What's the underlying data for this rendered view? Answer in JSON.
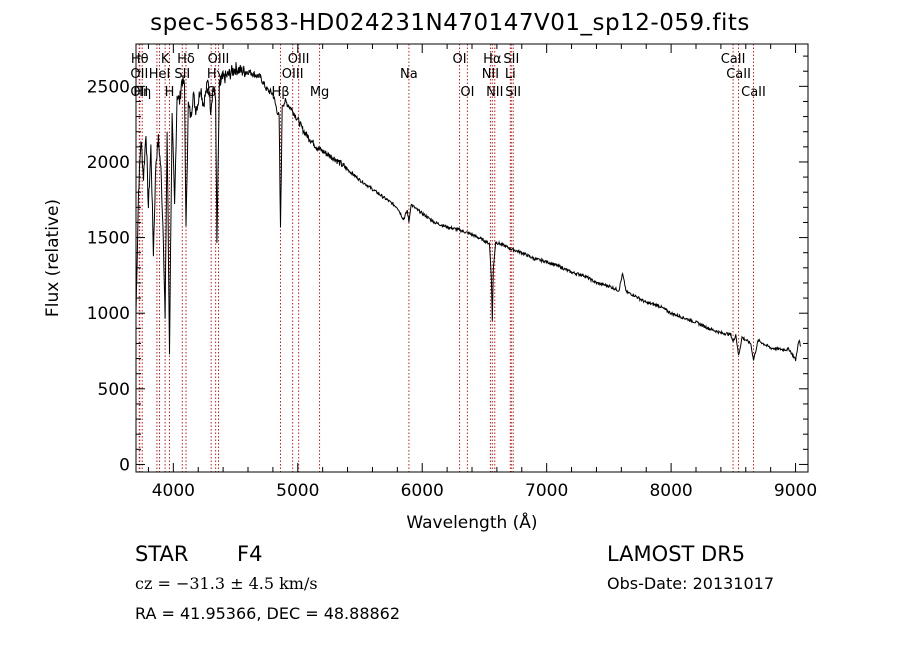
{
  "title": "spec-56583-HD024231N470147V01_sp12-059.fits",
  "info": {
    "class": "STAR",
    "subclass": "F4",
    "survey": "LAMOST DR5",
    "cz_label": "cz = −31.3 ± 4.5 km/s",
    "obs_date": "Obs-Date: 20131017",
    "coords": "RA =  41.95366, DEC =  48.88862"
  },
  "chart_data": {
    "type": "line",
    "title": "spec-56583-HD024231N470147V01_sp12-059.fits",
    "xlabel": "Wavelength (Å)",
    "ylabel": "Flux (relative)",
    "xlim": [
      3700,
      9100
    ],
    "ylim": [
      -50,
      2780
    ],
    "xticks": [
      4000,
      5000,
      6000,
      7000,
      8000,
      9000
    ],
    "yticks": [
      0,
      500,
      1000,
      1500,
      2000,
      2500
    ],
    "series": [
      {
        "color": "#000000",
        "x": [
          3700,
          3720,
          3740,
          3760,
          3780,
          3800,
          3820,
          3840,
          3860,
          3880,
          3900,
          3920,
          3934,
          3950,
          3969,
          3990,
          4010,
          4030,
          4050,
          4070,
          4090,
          4102,
          4120,
          4140,
          4160,
          4180,
          4200,
          4220,
          4240,
          4260,
          4280,
          4300,
          4320,
          4340,
          4350,
          4370,
          4400,
          4450,
          4500,
          4550,
          4600,
          4650,
          4700,
          4750,
          4800,
          4830,
          4850,
          4861,
          4875,
          4900,
          4950,
          5000,
          5050,
          5100,
          5150,
          5200,
          5300,
          5400,
          5500,
          5600,
          5700,
          5800,
          5850,
          5880,
          5893,
          5910,
          5950,
          6000,
          6100,
          6200,
          6300,
          6400,
          6500,
          6540,
          6555,
          6563,
          6572,
          6590,
          6650,
          6700,
          6800,
          6900,
          7000,
          7100,
          7200,
          7300,
          7400,
          7500,
          7580,
          7610,
          7640,
          7700,
          7800,
          7900,
          8000,
          8100,
          8200,
          8300,
          8400,
          8480,
          8498,
          8520,
          8542,
          8570,
          8640,
          8662,
          8700,
          8800,
          8900,
          8950,
          8980,
          9000,
          9020,
          9030,
          9040
        ],
        "y": [
          1000,
          1800,
          2150,
          1900,
          2200,
          1700,
          2100,
          1400,
          2000,
          2150,
          1950,
          1500,
          950,
          2200,
          750,
          2300,
          1700,
          2450,
          2400,
          2550,
          2500,
          1550,
          2380,
          2300,
          2450,
          2350,
          2400,
          2500,
          2380,
          2450,
          2550,
          2350,
          2500,
          2420,
          1450,
          2500,
          2550,
          2580,
          2620,
          2600,
          2600,
          2580,
          2560,
          2480,
          2450,
          2350,
          2300,
          1550,
          2380,
          2400,
          2350,
          2280,
          2200,
          2150,
          2100,
          2070,
          2020,
          1950,
          1880,
          1820,
          1760,
          1700,
          1620,
          1680,
          1600,
          1720,
          1690,
          1660,
          1600,
          1570,
          1550,
          1520,
          1480,
          1460,
          1250,
          950,
          1300,
          1470,
          1450,
          1430,
          1400,
          1360,
          1340,
          1310,
          1270,
          1250,
          1200,
          1180,
          1150,
          1260,
          1140,
          1120,
          1070,
          1050,
          1000,
          970,
          940,
          900,
          870,
          860,
          810,
          860,
          720,
          840,
          800,
          690,
          820,
          770,
          760,
          760,
          720,
          690,
          790,
          820,
          780
        ]
      }
    ],
    "lines": [
      {
        "w": 3730,
        "label": "Hθ",
        "row": 1
      },
      {
        "w": 3750,
        "label": "Hη",
        "row": 3
      },
      {
        "w": 3727,
        "label": "OII",
        "row": 2
      },
      {
        "w": 3727,
        "label": "OII",
        "row": 3
      },
      {
        "w": 3868,
        "label": "",
        "row": 0
      },
      {
        "w": 3889,
        "label": "HeI",
        "row": 2
      },
      {
        "w": 3934,
        "label": "K",
        "row": 1
      },
      {
        "w": 3969,
        "label": "H",
        "row": 3
      },
      {
        "w": 4072,
        "label": "SII",
        "row": 2
      },
      {
        "w": 4102,
        "label": "Hδ",
        "row": 1
      },
      {
        "w": 4304,
        "label": "G",
        "row": 3
      },
      {
        "w": 4340,
        "label": "Hγ",
        "row": 2
      },
      {
        "w": 4363,
        "label": "OIII",
        "row": 1
      },
      {
        "w": 4861,
        "label": "Hβ",
        "row": 3
      },
      {
        "w": 4959,
        "label": "OIII",
        "row": 2
      },
      {
        "w": 5007,
        "label": "OIII",
        "row": 1
      },
      {
        "w": 5175,
        "label": "Mg",
        "row": 3
      },
      {
        "w": 5893,
        "label": "Na",
        "row": 2
      },
      {
        "w": 6300,
        "label": "OI",
        "row": 1
      },
      {
        "w": 6363,
        "label": "OI",
        "row": 3
      },
      {
        "w": 6548,
        "label": "NII",
        "row": 2
      },
      {
        "w": 6563,
        "label": "Hα",
        "row": 1
      },
      {
        "w": 6583,
        "label": "NII",
        "row": 3
      },
      {
        "w": 6708,
        "label": "Li",
        "row": 2
      },
      {
        "w": 6716,
        "label": "SII",
        "row": 1
      },
      {
        "w": 6731,
        "label": "SII",
        "row": 3
      },
      {
        "w": 8498,
        "label": "CaII",
        "row": 1
      },
      {
        "w": 8542,
        "label": "CaII",
        "row": 2
      },
      {
        "w": 8662,
        "label": "CaII",
        "row": 3
      }
    ],
    "grid": false,
    "line_color": "#b22222"
  }
}
